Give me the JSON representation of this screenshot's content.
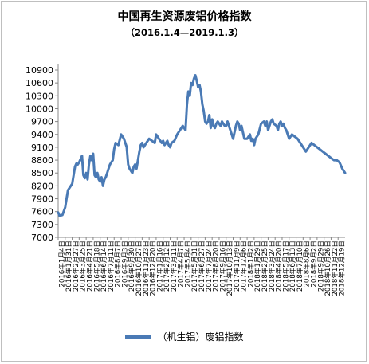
{
  "chart_data": {
    "type": "line",
    "title": "中国再生资源废铝价格指数",
    "subtitle": "（2016.1.4—2019.1.3）",
    "xlabel": "",
    "ylabel": "",
    "ylim": [
      7000,
      10900
    ],
    "yticks": [
      7000,
      7300,
      7600,
      7900,
      8200,
      8500,
      8800,
      9100,
      9400,
      9700,
      10000,
      10300,
      10600,
      10900
    ],
    "grid": false,
    "legend_position": "bottom",
    "line_color": "#4a7ab5",
    "xtick_labels": [
      "2016年1月4日",
      "2016年1月31日",
      "2016年2月27日",
      "2016年3月25日",
      "2016年4月21日",
      "2016年5月18日",
      "2016年6月14日",
      "2016年7月11日",
      "2016年8月7日",
      "2016年9月3日",
      "2016年9月30日",
      "2016年10月27日",
      "2016年11月23日",
      "2016年12月20日",
      "2017年1月16日",
      "2017年2月12日",
      "2017年3月11日",
      "2017年4月7日",
      "2017年5月4日",
      "2017年5月31日",
      "2017年6月27日",
      "2017年7月24日",
      "2017年8月20日",
      "2017年9月16日",
      "2017年10月13日",
      "2017年11月9日",
      "2017年12月6日",
      "2018年1月2日",
      "2018年1月29日",
      "2018年2月25日",
      "2018年3月24日",
      "2018年4月20日",
      "2018年5月17日",
      "2018年6月13日",
      "2018年7月10日",
      "2018年8月6日",
      "2018年9月2日",
      "2018年9月29日",
      "2018年10月26日",
      "2018年11月22日",
      "2018年12月19日"
    ],
    "series": [
      {
        "name": "（机生铝）废铝指数",
        "x": [
          0,
          2,
          6,
          10,
          12,
          14,
          20,
          24,
          26,
          28,
          30,
          34,
          36,
          38,
          40,
          42,
          44,
          46,
          48,
          50,
          52,
          54,
          56,
          58,
          60,
          62,
          64,
          66,
          68,
          70,
          72,
          74,
          76,
          78,
          80,
          82,
          86,
          90,
          94,
          98,
          100,
          102,
          104,
          106,
          108,
          110,
          112,
          114,
          116,
          118,
          120,
          122,
          126,
          130,
          134,
          138,
          140,
          142,
          144,
          146,
          148,
          150,
          152,
          154,
          156,
          158,
          160,
          162,
          166,
          170,
          174,
          178,
          180,
          182,
          184,
          186,
          188,
          190,
          192,
          194,
          196,
          198,
          200,
          202,
          204,
          206,
          208,
          210,
          212,
          214,
          216,
          218,
          220,
          222,
          224,
          226,
          228,
          230,
          232,
          234,
          236,
          238,
          240,
          242,
          246,
          250,
          254,
          256,
          258,
          260,
          262,
          266,
          270,
          274,
          276,
          278,
          280,
          282,
          286,
          290,
          294,
          296,
          298,
          300,
          304,
          306,
          308,
          312,
          314,
          316,
          318,
          320,
          322,
          324,
          326,
          328,
          330,
          334,
          338,
          342,
          346,
          350,
          354,
          358,
          362,
          366,
          370,
          374,
          378,
          382,
          386,
          390,
          394,
          398,
          402,
          406,
          410
        ],
        "values": [
          7580,
          7500,
          7520,
          7700,
          7900,
          8100,
          8250,
          8650,
          8720,
          8700,
          8750,
          8900,
          8450,
          8380,
          8500,
          8350,
          8700,
          8900,
          8800,
          8950,
          8450,
          8400,
          8500,
          8350,
          8300,
          8400,
          8200,
          8350,
          8400,
          8500,
          8600,
          8700,
          8750,
          8800,
          9050,
          9200,
          9150,
          9400,
          9300,
          9100,
          8700,
          8600,
          8550,
          8500,
          8650,
          8700,
          8600,
          8800,
          9000,
          9150,
          9200,
          9100,
          9200,
          9300,
          9250,
          9200,
          9400,
          9350,
          9300,
          9250,
          9200,
          9250,
          9150,
          9200,
          9250,
          9150,
          9100,
          9200,
          9250,
          9400,
          9500,
          9600,
          9550,
          9500,
          10100,
          10400,
          10300,
          10600,
          10550,
          10700,
          10780,
          10650,
          10500,
          10550,
          10400,
          10100,
          9950,
          9700,
          9650,
          9700,
          9850,
          9550,
          9750,
          9600,
          9550,
          9650,
          9700,
          9650,
          9600,
          9700,
          9650,
          9600,
          9600,
          9700,
          9500,
          9300,
          9600,
          9700,
          9650,
          9500,
          9600,
          9300,
          9300,
          9400,
          9250,
          9300,
          9150,
          9300,
          9400,
          9650,
          9700,
          9600,
          9700,
          9500,
          9700,
          9750,
          9650,
          9600,
          9500,
          9650,
          9700,
          9600,
          9650,
          9550,
          9500,
          9400,
          9300,
          9400,
          9350,
          9300,
          9200,
          9100,
          9000,
          9100,
          9200,
          9150,
          9100,
          9050,
          9000,
          8950,
          8900,
          8850,
          8800,
          8800,
          8750,
          8600,
          8500
        ]
      }
    ]
  }
}
